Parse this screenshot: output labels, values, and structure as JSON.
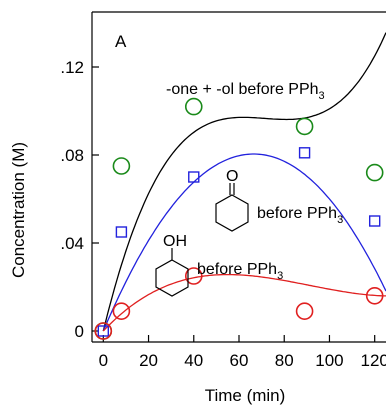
{
  "chart_data": {
    "type": "scatter",
    "panel_label": "A",
    "xlabel": "Time (min)",
    "ylabel": "Concentration  (M)",
    "xlim": [
      -5,
      125
    ],
    "ylim": [
      -0.005,
      0.145
    ],
    "x_ticks": [
      0,
      20,
      40,
      60,
      80,
      100,
      120
    ],
    "y_ticks": [
      0,
      0.04,
      0.08,
      0.12
    ],
    "grid": false,
    "series": [
      {
        "color": "#1a8a1a",
        "fit_color": "#000000",
        "marker": "circle",
        "x": [
          0,
          8,
          40,
          89,
          120
        ],
        "y": [
          0,
          0.075,
          0.102,
          0.093,
          0.072
        ],
        "fit_coeffs": [
          0.0,
          0.00421,
          -6e-05,
          2.8e-07
        ]
      },
      {
        "color": "#2222dd",
        "fit_color": "#2222dd",
        "marker": "square",
        "x": [
          0,
          8,
          40,
          89,
          120
        ],
        "y": [
          0,
          0.045,
          0.07,
          0.081,
          0.05
        ],
        "fit_coeffs": [
          0.0,
          0.00242,
          -1.82e-05,
          0.0
        ]
      },
      {
        "color": "#e02020",
        "fit_color": "#e02020",
        "marker": "circle",
        "x": [
          0,
          8,
          40,
          89,
          120
        ],
        "y": [
          0,
          0.009,
          0.025,
          0.009,
          0.016
        ],
        "fit_coeffs": [
          0.0,
          0.00109,
          -1.42e-05,
          5.2e-08
        ]
      }
    ],
    "annotations": {
      "ketone_alcohol": "-one + -ol before PPh",
      "ketone": "before PPh",
      "alcohol": "before PPh",
      "subscript": "3",
      "ketone_atom": "O",
      "alcohol_group": "OH"
    }
  }
}
